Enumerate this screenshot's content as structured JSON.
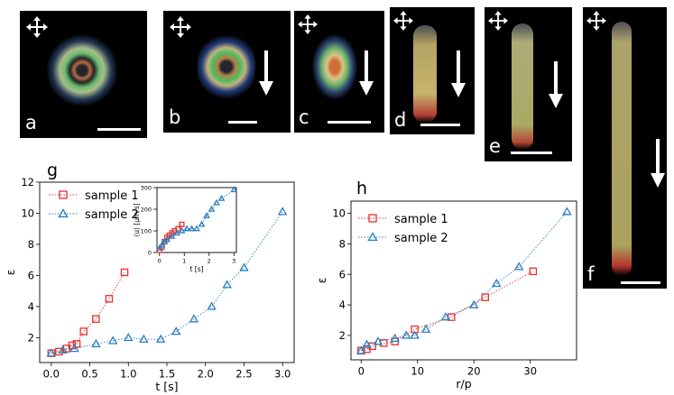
{
  "micrographs": [
    {
      "label": "a",
      "arrow": false
    },
    {
      "label": "b",
      "arrow": true
    },
    {
      "label": "c",
      "arrow": true
    },
    {
      "label": "d",
      "arrow": true
    },
    {
      "label": "e",
      "arrow": true
    },
    {
      "label": "f",
      "arrow": true
    }
  ],
  "chart_data": [
    {
      "type": "scatter",
      "panel_label": "g",
      "xlabel": "t [s]",
      "ylabel": "ε",
      "xlim": [
        -0.15,
        3.15
      ],
      "ylim": [
        0.4,
        12
      ],
      "xticks": [
        "0.0",
        "0.5",
        "1.0",
        "1.5",
        "2.0",
        "2.5",
        "3.0"
      ],
      "yticks": [
        "2",
        "4",
        "6",
        "8",
        "10",
        "12"
      ],
      "legend_position": "top-left",
      "series": [
        {
          "name": "sample 1",
          "marker": "square",
          "color": "#e8302c",
          "x": [
            0.0,
            0.1,
            0.2,
            0.27,
            0.33,
            0.42,
            0.58,
            0.75,
            0.95
          ],
          "y": [
            1.0,
            1.1,
            1.3,
            1.5,
            1.6,
            2.4,
            3.2,
            4.5,
            6.2
          ]
        },
        {
          "name": "sample 2",
          "marker": "triangle",
          "color": "#2b7fbf",
          "x": [
            0.0,
            0.15,
            0.3,
            0.58,
            0.8,
            1.0,
            1.2,
            1.42,
            1.62,
            1.85,
            2.08,
            2.28,
            2.5,
            3.0
          ],
          "y": [
            1.0,
            1.2,
            1.3,
            1.6,
            1.8,
            2.0,
            1.9,
            1.9,
            2.4,
            3.2,
            4.0,
            5.4,
            6.5,
            10.1
          ]
        }
      ],
      "inset": {
        "ylabel": "⟨u⟩ [μm/s]",
        "xlabel": "t [s]",
        "xlim": [
          -0.1,
          3.1
        ],
        "ylim": [
          0,
          300
        ],
        "xticks": [
          "0",
          "1",
          "2",
          "3"
        ],
        "yticks": [
          "0",
          "100",
          "200",
          "300"
        ],
        "series": [
          {
            "name": "sample 1",
            "marker": "square",
            "color": "#e8302c",
            "x": [
              0.0,
              0.1,
              0.2,
              0.3,
              0.4,
              0.5,
              0.6,
              0.75,
              0.9
            ],
            "y": [
              10,
              25,
              50,
              70,
              80,
              90,
              100,
              110,
              130
            ]
          },
          {
            "name": "sample 2",
            "marker": "triangle",
            "color": "#2b7fbf",
            "x": [
              0.0,
              0.1,
              0.2,
              0.3,
              0.5,
              0.7,
              0.9,
              1.1,
              1.3,
              1.5,
              1.7,
              1.9,
              2.1,
              2.3,
              2.5,
              3.0
            ],
            "y": [
              20,
              35,
              50,
              60,
              75,
              90,
              100,
              110,
              110,
              110,
              130,
              170,
              200,
              230,
              250,
              290
            ]
          }
        ]
      }
    },
    {
      "type": "scatter",
      "panel_label": "h",
      "xlabel": "r/p",
      "ylabel": "ε",
      "xlim": [
        -1.8,
        38.2
      ],
      "ylim": [
        0.4,
        10.8
      ],
      "xticks": [
        "0",
        "10",
        "20",
        "30"
      ],
      "yticks": [
        "2",
        "4",
        "6",
        "8",
        "10"
      ],
      "legend_position": "top-left",
      "series": [
        {
          "name": "sample 1",
          "marker": "square",
          "color": "#e8302c",
          "x": [
            0,
            1,
            2,
            4,
            6,
            9.5,
            16,
            22,
            30.5
          ],
          "y": [
            1.0,
            1.1,
            1.3,
            1.5,
            1.6,
            2.4,
            3.2,
            4.5,
            6.2
          ]
        },
        {
          "name": "sample 2",
          "marker": "triangle",
          "color": "#2b7fbf",
          "x": [
            0,
            1,
            3,
            6,
            8,
            9.5,
            11.5,
            15,
            20,
            24,
            28,
            36.5
          ],
          "y": [
            1.0,
            1.4,
            1.6,
            1.8,
            2.0,
            2.0,
            2.4,
            3.2,
            4.0,
            5.4,
            6.5,
            10.1
          ]
        }
      ]
    }
  ]
}
